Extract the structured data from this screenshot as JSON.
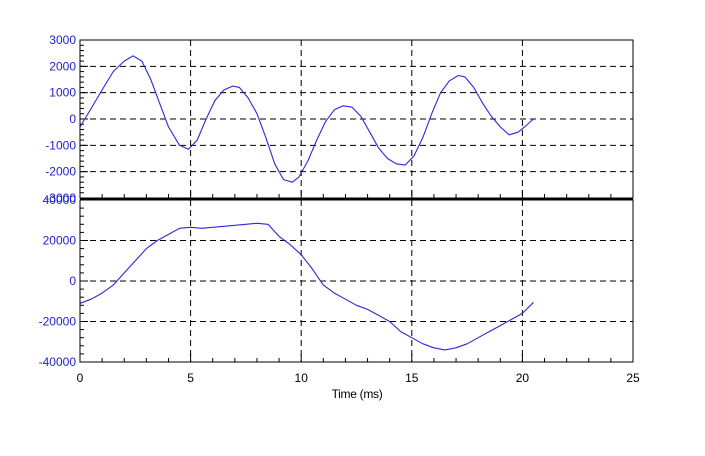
{
  "chart_data": [
    {
      "type": "line",
      "title": "",
      "xlabel": "",
      "ylabel": "",
      "xlim": [
        0,
        25
      ],
      "ylim": [
        -3000,
        3000
      ],
      "yticks": [
        3000,
        2000,
        1000,
        0,
        -1000,
        -2000,
        -3000
      ],
      "ytick_labels": [
        "3000",
        "2000",
        "1000",
        "0",
        "-1000",
        "-2000",
        "-3000"
      ],
      "grid": true,
      "series": [
        {
          "color": "#2a2ad8",
          "x": [
            0,
            0.5,
            1,
            1.5,
            2,
            2.4,
            2.8,
            3.2,
            3.6,
            4,
            4.5,
            4.9,
            5.3,
            5.7,
            6.1,
            6.5,
            6.9,
            7.2,
            7.6,
            8.0,
            8.4,
            8.8,
            9.2,
            9.6,
            9.9,
            10.3,
            10.7,
            11.1,
            11.5,
            11.9,
            12.3,
            12.7,
            13.1,
            13.5,
            13.9,
            14.3,
            14.7,
            15.1,
            15.5,
            15.9,
            16.3,
            16.7,
            17.1,
            17.4,
            17.8,
            18.2,
            18.6,
            19.0,
            19.4,
            19.8,
            20.1,
            20.5
          ],
          "y": [
            -300,
            400,
            1100,
            1800,
            2200,
            2400,
            2200,
            1500,
            600,
            -300,
            -1000,
            -1150,
            -800,
            0,
            700,
            1100,
            1250,
            1200,
            800,
            200,
            -700,
            -1700,
            -2300,
            -2400,
            -2200,
            -1600,
            -800,
            -100,
            350,
            500,
            450,
            100,
            -500,
            -1100,
            -1500,
            -1700,
            -1750,
            -1400,
            -700,
            200,
            1000,
            1450,
            1650,
            1600,
            1200,
            600,
            100,
            -300,
            -600,
            -500,
            -300,
            0
          ]
        }
      ]
    },
    {
      "type": "line",
      "title": "",
      "xlabel": "Time (ms)",
      "ylabel": "",
      "xlim": [
        0,
        25
      ],
      "ylim": [
        -40000,
        40000
      ],
      "xticks": [
        0,
        5,
        10,
        15,
        20,
        25
      ],
      "xtick_labels": [
        "0",
        "5",
        "10",
        "15",
        "20",
        "25"
      ],
      "yticks": [
        40000,
        20000,
        0,
        -20000,
        -40000
      ],
      "ytick_labels": [
        "40000",
        "20000",
        "0",
        "-20000",
        "-40000"
      ],
      "grid": true,
      "series": [
        {
          "color": "#2a2ad8",
          "x": [
            0,
            0.5,
            1,
            1.5,
            2,
            2.5,
            3,
            3.5,
            4,
            4.5,
            5,
            5.5,
            6,
            6.5,
            7,
            7.5,
            8,
            8.5,
            9,
            9.5,
            10,
            10.5,
            11,
            11.5,
            12,
            12.5,
            13,
            13.5,
            14,
            14.5,
            15,
            15.5,
            16,
            16.5,
            17,
            17.5,
            18,
            18.5,
            19,
            19.5,
            20,
            20.5
          ],
          "y": [
            -11000,
            -9000,
            -6000,
            -2000,
            4000,
            10000,
            16000,
            20000,
            23000,
            26000,
            26500,
            26000,
            26500,
            27000,
            27500,
            28000,
            28500,
            28000,
            22000,
            18000,
            13000,
            6000,
            -2000,
            -6000,
            -9000,
            -12000,
            -14000,
            -17000,
            -20000,
            -25000,
            -28000,
            -31000,
            -33000,
            -34000,
            -33000,
            -31000,
            -28000,
            -25000,
            -22000,
            -19000,
            -16000,
            -10500
          ]
        }
      ]
    }
  ]
}
